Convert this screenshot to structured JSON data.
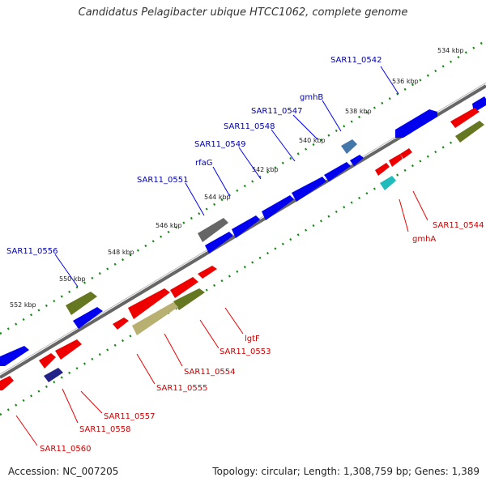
{
  "title": "Candidatus Pelagibacter ubique HTCC1062, complete genome",
  "accession": "Accession: NC_007205",
  "topology": "Topology: circular; Length: 1,308,759 bp; Genes: 1,389",
  "colors": {
    "forward_gene": "#0000ee",
    "reverse_gene": "#ee0000",
    "forward_label": "#0000aa",
    "reverse_label": "#cc0000",
    "backbone": "#777777",
    "tick_green": "#118811"
  },
  "kbp_labels": [
    "534 kbp",
    "536 kbp",
    "538 kbp",
    "540 kbp",
    "542 kbp",
    "544 kbp",
    "546 kbp",
    "548 kbp",
    "550 kbp",
    "552 kbp"
  ],
  "forward_labels": [
    "SAR11_0542",
    "gmhB",
    "SAR11_0547",
    "SAR11_0548",
    "SAR11_0549",
    "rfaG",
    "SAR11_0551",
    "SAR11_0556"
  ],
  "reverse_labels": [
    "SAR11_0544",
    "gmhA",
    "lgtF",
    "SAR11_0553",
    "SAR11_0554",
    "SAR11_0555",
    "SAR11_0557",
    "SAR11_0558",
    "SAR11_0560"
  ]
}
